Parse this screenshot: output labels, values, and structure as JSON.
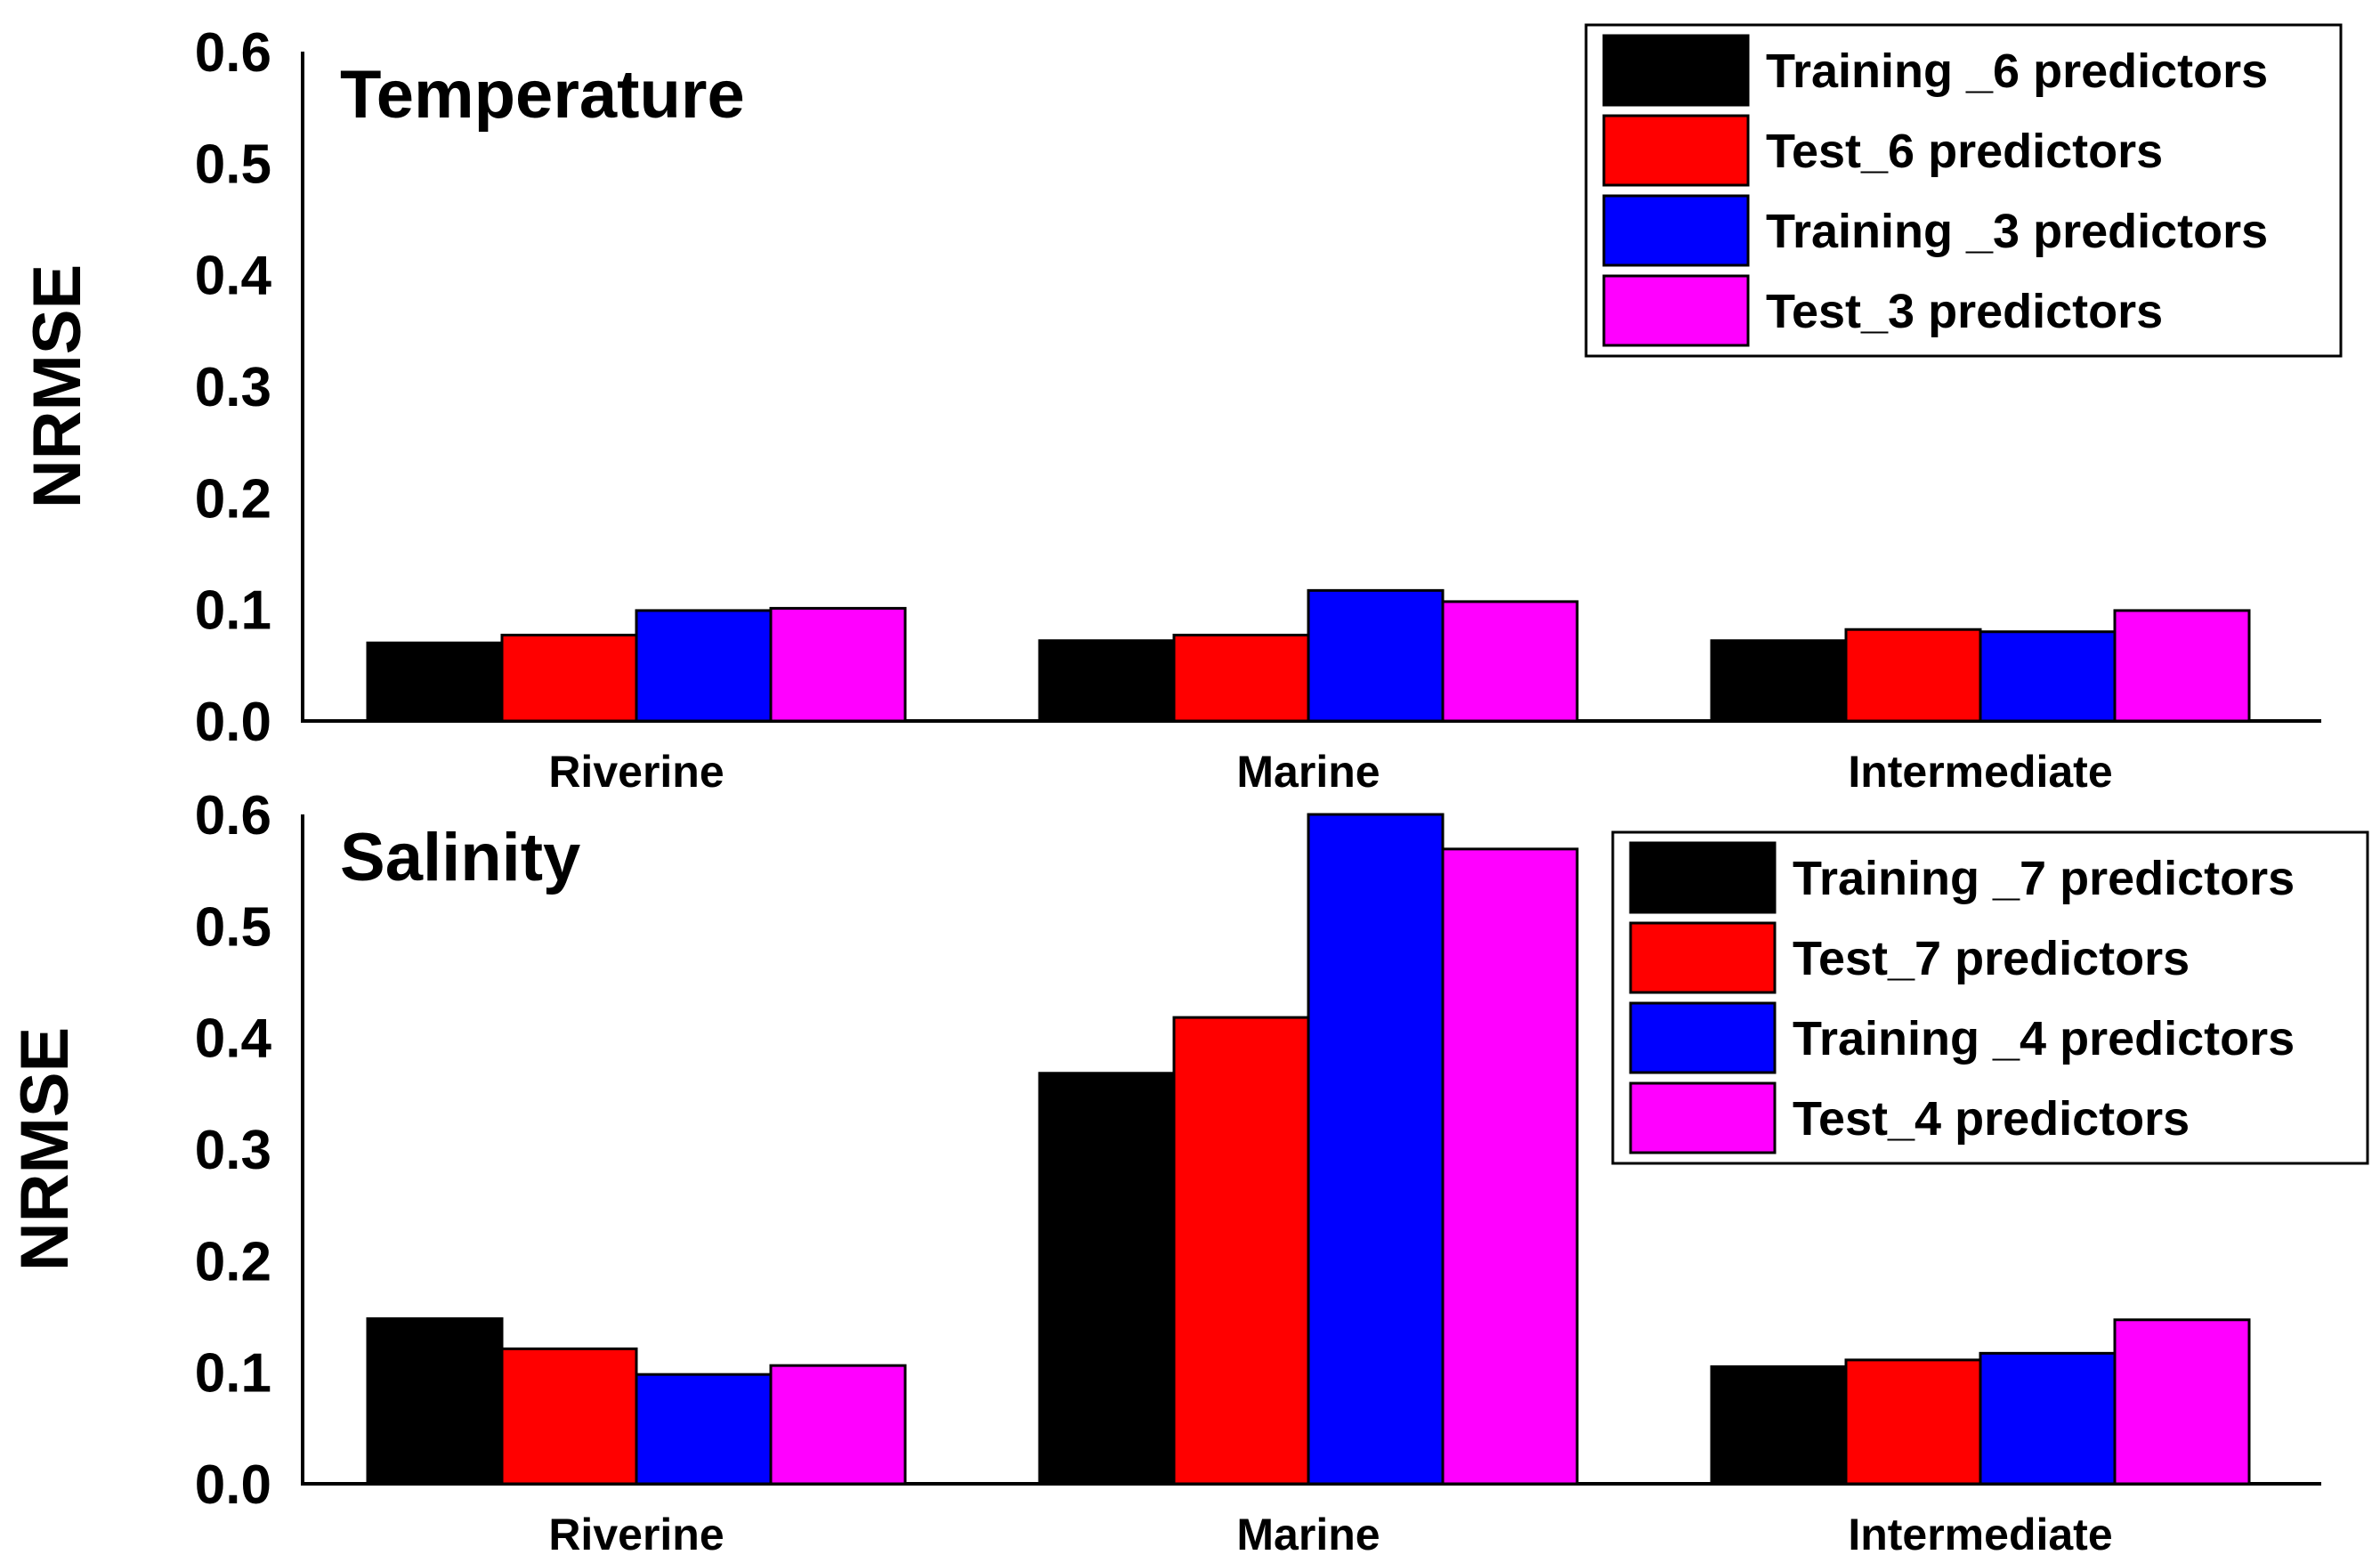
{
  "chart_data": [
    {
      "type": "bar",
      "title": "Temperature",
      "ylabel": "NRMSE",
      "xlabel": "",
      "ylim": [
        0,
        0.6
      ],
      "yticks": [
        "0.0",
        "0.1",
        "0.2",
        "0.3",
        "0.4",
        "0.5",
        "0.6"
      ],
      "categories": [
        "Riverine",
        "Marine",
        "Intermediate"
      ],
      "legend_position": "top-right",
      "series": [
        {
          "name": "Training _6 predictors",
          "color": "#000000",
          "values": [
            0.07,
            0.072,
            0.072
          ]
        },
        {
          "name": "Test_6 predictors",
          "color": "#ff0000",
          "values": [
            0.077,
            0.077,
            0.082
          ]
        },
        {
          "name": "Training _3 predictors",
          "color": "#0000ff",
          "values": [
            0.099,
            0.117,
            0.08
          ]
        },
        {
          "name": "Test_3 predictors",
          "color": "#ff00ff",
          "values": [
            0.101,
            0.107,
            0.099
          ]
        }
      ]
    },
    {
      "type": "bar",
      "title": "Salinity",
      "ylabel": "NRMSE",
      "xlabel": "",
      "ylim": [
        0,
        0.6
      ],
      "yticks": [
        "0.0",
        "0.1",
        "0.2",
        "0.3",
        "0.4",
        "0.5",
        "0.6"
      ],
      "categories": [
        "Riverine",
        "Marine",
        "Intermediate"
      ],
      "legend_position": "top-right",
      "series": [
        {
          "name": "Training _7 predictors",
          "color": "#000000",
          "values": [
            0.148,
            0.368,
            0.105
          ]
        },
        {
          "name": "Test_7 predictors",
          "color": "#ff0000",
          "values": [
            0.121,
            0.418,
            0.111
          ]
        },
        {
          "name": "Training _4 predictors",
          "color": "#0000ff",
          "values": [
            0.098,
            0.6,
            0.117
          ]
        },
        {
          "name": "Test_4 predictors",
          "color": "#ff00ff",
          "values": [
            0.106,
            0.569,
            0.147
          ]
        }
      ]
    }
  ]
}
